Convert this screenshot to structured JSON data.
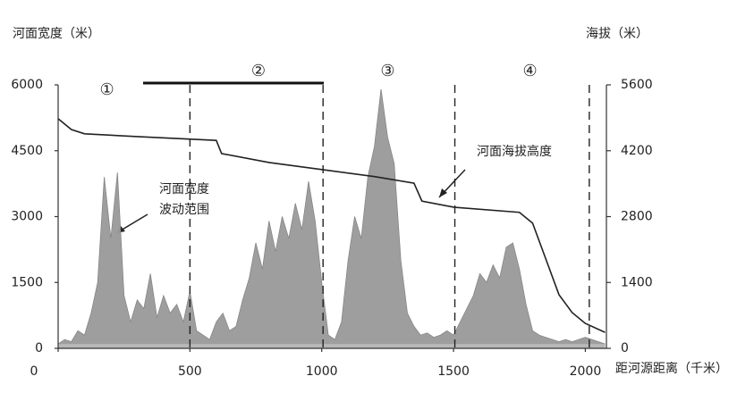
{
  "chart_data": {
    "type": "area-line",
    "y_title": "河面宽度（米）",
    "y2_title": "海拔（米）",
    "x_title": "距河源距离（千米）",
    "xlim": [
      0,
      2080
    ],
    "xticks": [
      0,
      500,
      1000,
      1500,
      2000
    ],
    "ylim": [
      0,
      6000
    ],
    "yticks": [
      0,
      1500,
      3000,
      4500,
      6000
    ],
    "y2lim": [
      0,
      5600
    ],
    "y2ticks": [
      0,
      1400,
      2800,
      4200,
      5600
    ],
    "dividers": [
      500,
      1005,
      1505,
      2015
    ],
    "sections": [
      {
        "label": "①",
        "x": 185
      },
      {
        "label": "②",
        "x": 760
      },
      {
        "label": "③",
        "x": 1250
      },
      {
        "label": "④",
        "x": 1790
      }
    ],
    "annotations": [
      "河面宽度",
      "波动范围",
      "河面海拔高度"
    ],
    "series": [
      {
        "name": "河面宽度",
        "color": "#9a9a9a",
        "x": [
          0,
          25,
          50,
          75,
          100,
          125,
          150,
          175,
          200,
          225,
          250,
          275,
          300,
          325,
          350,
          375,
          400,
          425,
          450,
          475,
          500,
          525,
          550,
          575,
          600,
          625,
          650,
          675,
          700,
          725,
          750,
          775,
          800,
          825,
          850,
          875,
          900,
          925,
          950,
          975,
          1000,
          1025,
          1050,
          1075,
          1100,
          1125,
          1150,
          1175,
          1200,
          1225,
          1250,
          1275,
          1300,
          1325,
          1350,
          1375,
          1400,
          1425,
          1450,
          1475,
          1500,
          1525,
          1550,
          1575,
          1600,
          1625,
          1650,
          1675,
          1700,
          1725,
          1750,
          1775,
          1800,
          1825,
          1850,
          1875,
          1900,
          1925,
          1950,
          1975,
          2000,
          2025,
          2050,
          2075
        ],
        "values": [
          100,
          200,
          150,
          400,
          300,
          800,
          1500,
          3900,
          2500,
          4000,
          1200,
          600,
          1100,
          900,
          1700,
          700,
          1200,
          800,
          1000,
          600,
          1300,
          400,
          300,
          200,
          600,
          800,
          400,
          500,
          1100,
          1600,
          2400,
          1800,
          2900,
          2200,
          3000,
          2500,
          3300,
          2700,
          3800,
          2900,
          1500,
          300,
          200,
          600,
          2000,
          3000,
          2500,
          3900,
          4600,
          5900,
          4800,
          4200,
          2000,
          800,
          500,
          300,
          350,
          250,
          300,
          400,
          300,
          600,
          900,
          1200,
          1700,
          1500,
          1900,
          1600,
          2300,
          2400,
          1800,
          1000,
          400,
          300,
          250,
          200,
          150,
          200,
          150,
          200,
          250,
          200,
          150,
          100
        ]
      },
      {
        "name": "河面海拔高度",
        "color": "#222222",
        "axis": "y2",
        "x": [
          0,
          50,
          100,
          300,
          600,
          620,
          800,
          1000,
          1200,
          1350,
          1380,
          1500,
          1750,
          1800,
          1850,
          1900,
          1950,
          2000,
          2075
        ],
        "values": [
          4880,
          4650,
          4560,
          4500,
          4420,
          4140,
          3950,
          3800,
          3650,
          3510,
          3130,
          3000,
          2890,
          2660,
          1900,
          1140,
          760,
          530,
          340
        ]
      }
    ]
  }
}
